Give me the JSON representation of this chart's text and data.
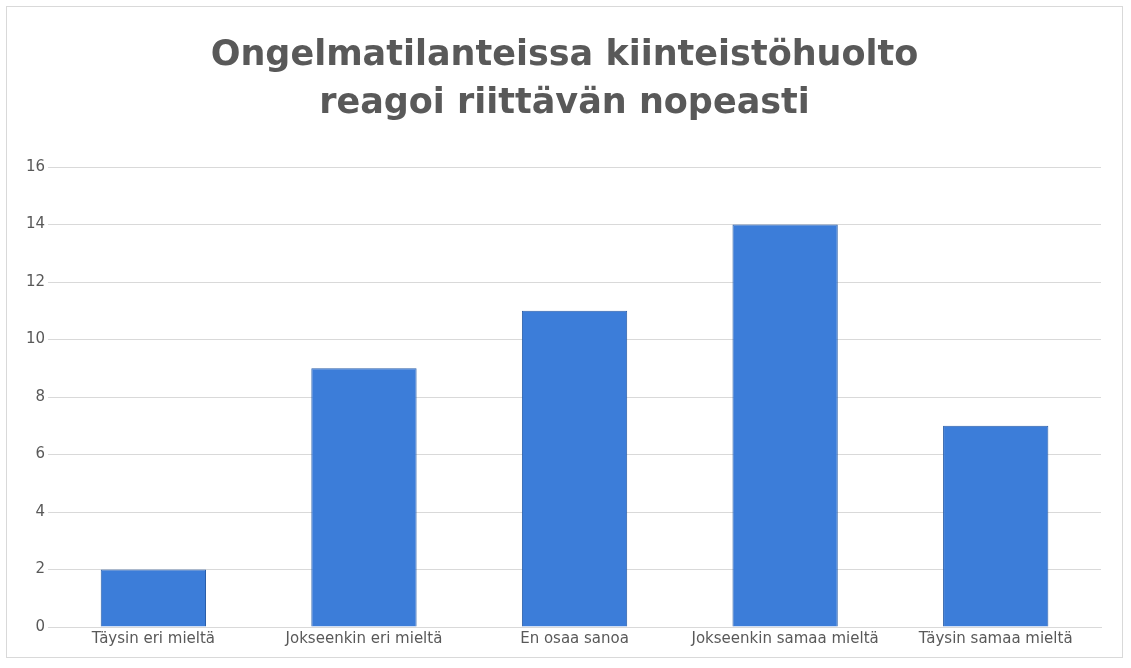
{
  "chart_data": {
    "type": "bar",
    "title": "Ongelmatilanteissa kiinteistöhuolto reagoi riittävän nopeasti",
    "categories": [
      "Täysin eri mieltä",
      "Jokseenkin eri mieltä",
      "En osaa sanoa",
      "Jokseenkin samaa mieltä",
      "Täysin samaa mieltä"
    ],
    "values": [
      2,
      9,
      11,
      14,
      7
    ],
    "color": "#3c7dd9",
    "ylim": [
      0,
      16
    ],
    "yticks": [
      0,
      2,
      4,
      6,
      8,
      10,
      12,
      14,
      16
    ],
    "grid": "y",
    "legend": false
  }
}
